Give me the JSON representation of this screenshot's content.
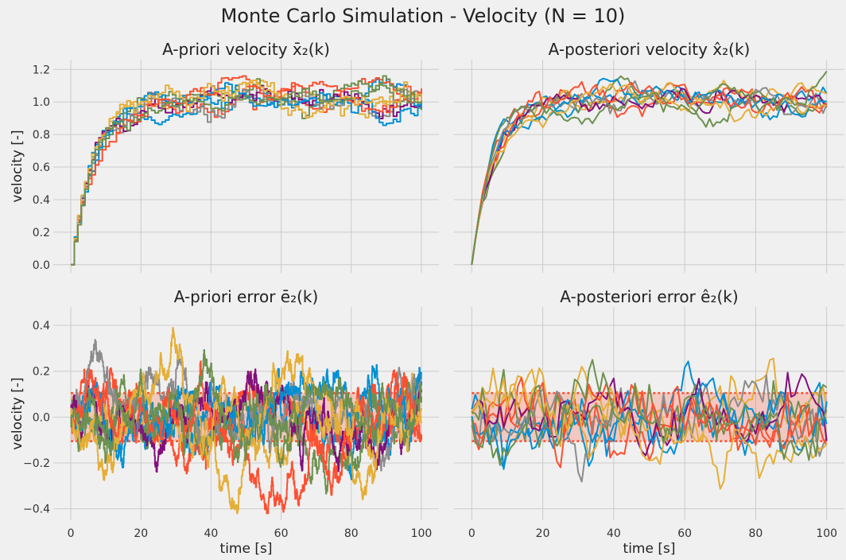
{
  "suptitle": "Monte Carlo Simulation - Velocity (N = 10)",
  "colors": [
    "#008fd5",
    "#fc4f30",
    "#e5ae38",
    "#6d904f",
    "#8b8b8b",
    "#810f7c",
    "#008fd5",
    "#fc4f30",
    "#e5ae38",
    "#6d904f"
  ],
  "band_color": "#fc4f30",
  "chart_data": [
    {
      "panel": "top-left",
      "type": "line",
      "style": "step",
      "title": "A-priori velocity x̄₂(k)",
      "xlabel": "",
      "ylabel": "velocity [-]",
      "xlim": [
        -5,
        105
      ],
      "ylim": [
        -0.05,
        1.26
      ],
      "xticks": [
        0,
        20,
        40,
        60,
        80,
        100
      ],
      "xtick_labels": [],
      "yticks": [
        0.0,
        0.2,
        0.4,
        0.6,
        0.8,
        1.0,
        1.2
      ],
      "ytick_labels": [
        "0.0",
        "0.2",
        "0.4",
        "0.6",
        "0.8",
        "1.0",
        "1.2"
      ],
      "grid": true,
      "n_runs": 10,
      "sample_step": 1,
      "mean_curve": "1 - exp(-k/6)",
      "noise_std": 0.05,
      "noise_max": 1.16
    },
    {
      "panel": "top-right",
      "type": "line",
      "style": "line",
      "title": "A-posteriori velocity x̂₂(k)",
      "xlabel": "",
      "ylabel": "",
      "xlim": [
        -5,
        105
      ],
      "ylim": [
        -0.05,
        1.26
      ],
      "xticks": [
        0,
        20,
        40,
        60,
        80,
        100
      ],
      "xtick_labels": [],
      "yticks": [
        0.0,
        0.2,
        0.4,
        0.6,
        0.8,
        1.0,
        1.2
      ],
      "ytick_labels": [],
      "grid": true,
      "n_runs": 10,
      "sample_step": 1,
      "mean_curve": "1 - exp(-k/6)",
      "noise_std": 0.05,
      "noise_max": 1.2
    },
    {
      "panel": "bottom-left",
      "type": "line",
      "style": "step",
      "title": "A-priori error ē₂(k)",
      "xlabel": "time [s]",
      "ylabel": "velocity [-]",
      "xlim": [
        -5,
        105
      ],
      "ylim": [
        -0.45,
        0.48
      ],
      "xticks": [
        0,
        20,
        40,
        60,
        80,
        100
      ],
      "xtick_labels": [
        "0",
        "20",
        "40",
        "60",
        "80",
        "100"
      ],
      "yticks": [
        -0.4,
        -0.2,
        0.0,
        0.2,
        0.4
      ],
      "ytick_labels": [
        "−0.4",
        "−0.2",
        "0.0",
        "0.2",
        "0.4"
      ],
      "grid": true,
      "n_runs": 10,
      "sample_step": 0.1,
      "error_std": 0.12,
      "error_max": 0.44,
      "error_min": -0.42,
      "confidence_band": [
        -0.105,
        0.105
      ]
    },
    {
      "panel": "bottom-right",
      "type": "line",
      "style": "line",
      "title": "A-posteriori error ê₂(k)",
      "xlabel": "time [s]",
      "ylabel": "",
      "xlim": [
        -5,
        105
      ],
      "ylim": [
        -0.45,
        0.48
      ],
      "xticks": [
        0,
        20,
        40,
        60,
        80,
        100
      ],
      "xtick_labels": [
        "0",
        "20",
        "40",
        "60",
        "80",
        "100"
      ],
      "yticks": [
        -0.4,
        -0.2,
        0.0,
        0.2,
        0.4
      ],
      "ytick_labels": [],
      "grid": true,
      "n_runs": 10,
      "sample_step": 1,
      "error_std": 0.1,
      "error_max": 0.36,
      "error_min": -0.35,
      "confidence_band": [
        -0.105,
        0.105
      ]
    }
  ]
}
